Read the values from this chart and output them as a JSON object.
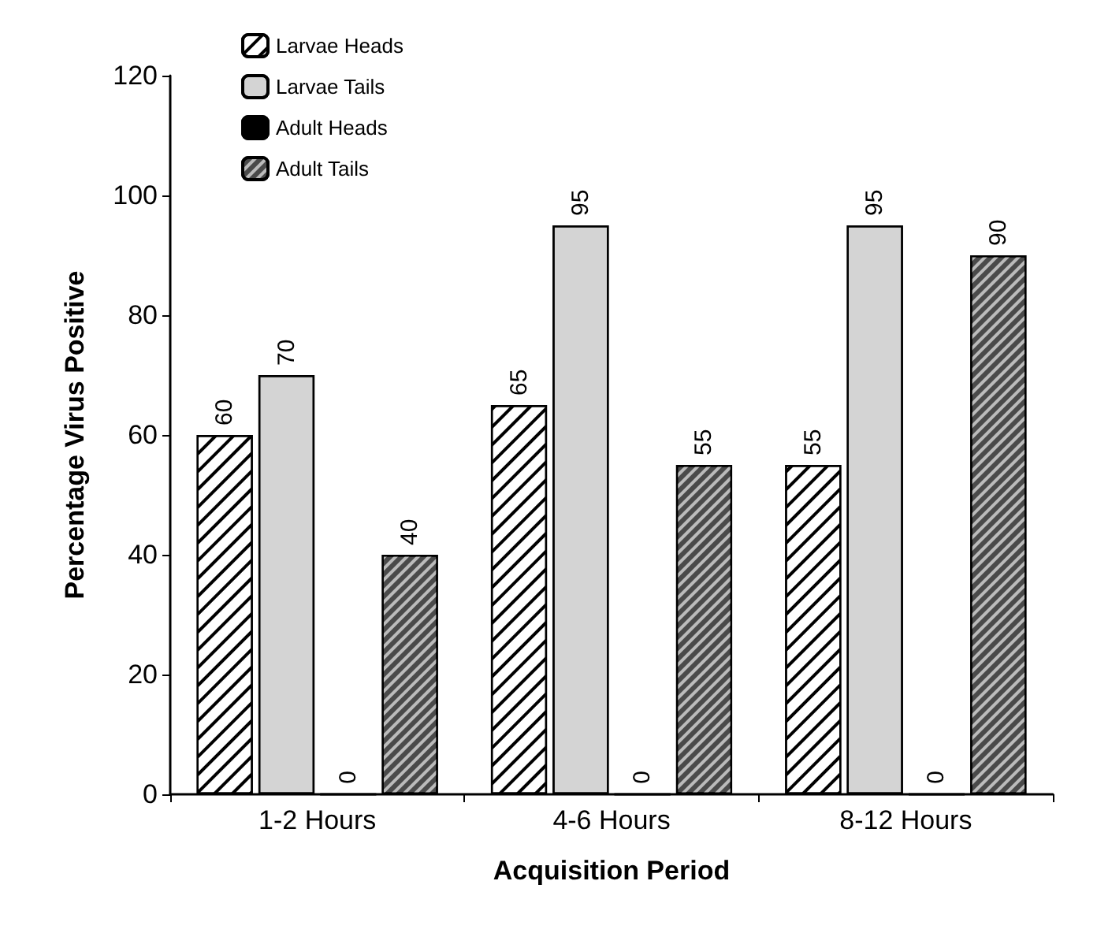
{
  "chart_data": {
    "type": "bar",
    "xlabel": "Acquisition Period",
    "ylabel": "Percentage Virus Positive",
    "categories": [
      "1-2 Hours",
      "4-6 Hours",
      "8-12 Hours"
    ],
    "series": [
      {
        "name": "Larvae Heads",
        "color": "#ffffff",
        "values": [
          60,
          65,
          55
        ]
      },
      {
        "name": "Larvae Tails",
        "color": "#d4d4d4",
        "values": [
          70,
          95,
          95
        ]
      },
      {
        "name": "Adult Heads",
        "color": "#000000",
        "values": [
          0,
          0,
          0
        ]
      },
      {
        "name": "Adult Tails",
        "color": "#4a4a4a",
        "values": [
          40,
          55,
          90
        ]
      }
    ],
    "ylim": [
      0,
      120
    ],
    "yticks": [
      0,
      20,
      40,
      60,
      80,
      100,
      120
    ],
    "data_labels": true,
    "legend": "top left",
    "grid": false
  }
}
